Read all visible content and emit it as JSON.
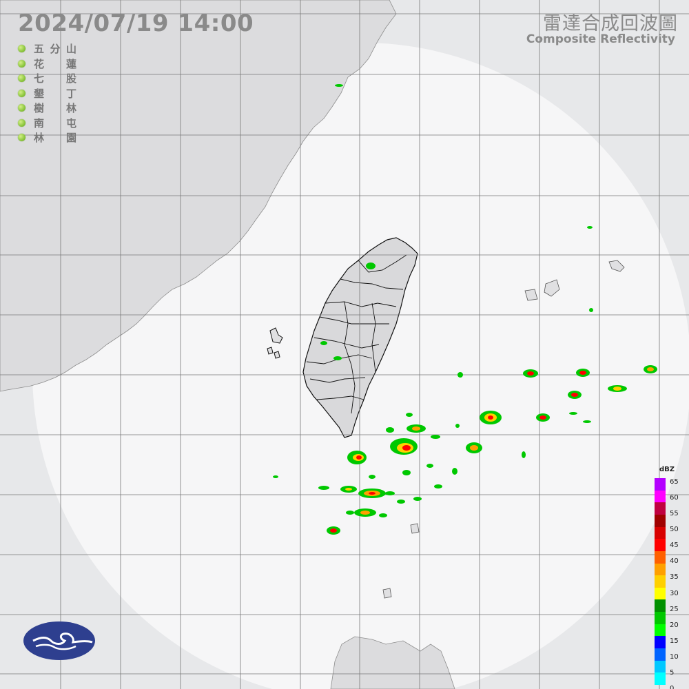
{
  "header": {
    "timestamp": "2024/07/19  14:00",
    "title_zh": "雷達合成回波圖",
    "title_en": "Composite Reflectivity"
  },
  "stations": [
    {
      "name": "五分山"
    },
    {
      "name": "花蓮"
    },
    {
      "name": "七股"
    },
    {
      "name": "墾丁"
    },
    {
      "name": "樹林"
    },
    {
      "name": "南屯"
    },
    {
      "name": "林園"
    }
  ],
  "colors": {
    "background": "#e7e8ea",
    "radar_coverage": "#f6f6f7",
    "land": "#dcdcde",
    "gridline": "#777777",
    "station_dot": "#8cc63e",
    "logo": "#2e3f8f"
  },
  "logo": {
    "icon": "cwa-cloud-logo-icon"
  },
  "scale": {
    "unit": "dBZ",
    "ticks": [
      "65",
      "60",
      "55",
      "50",
      "45",
      "40",
      "35",
      "30",
      "25",
      "20",
      "15",
      "10",
      "5",
      "0"
    ],
    "colors": [
      "#b400ff",
      "#ff00ff",
      "#c00040",
      "#a00000",
      "#d80000",
      "#ff0000",
      "#ff6000",
      "#ffa000",
      "#ffd000",
      "#ffff00",
      "#009000",
      "#00c800",
      "#00ff00",
      "#0000ff",
      "#0064ff",
      "#00c8ff",
      "#00ffff"
    ]
  }
}
